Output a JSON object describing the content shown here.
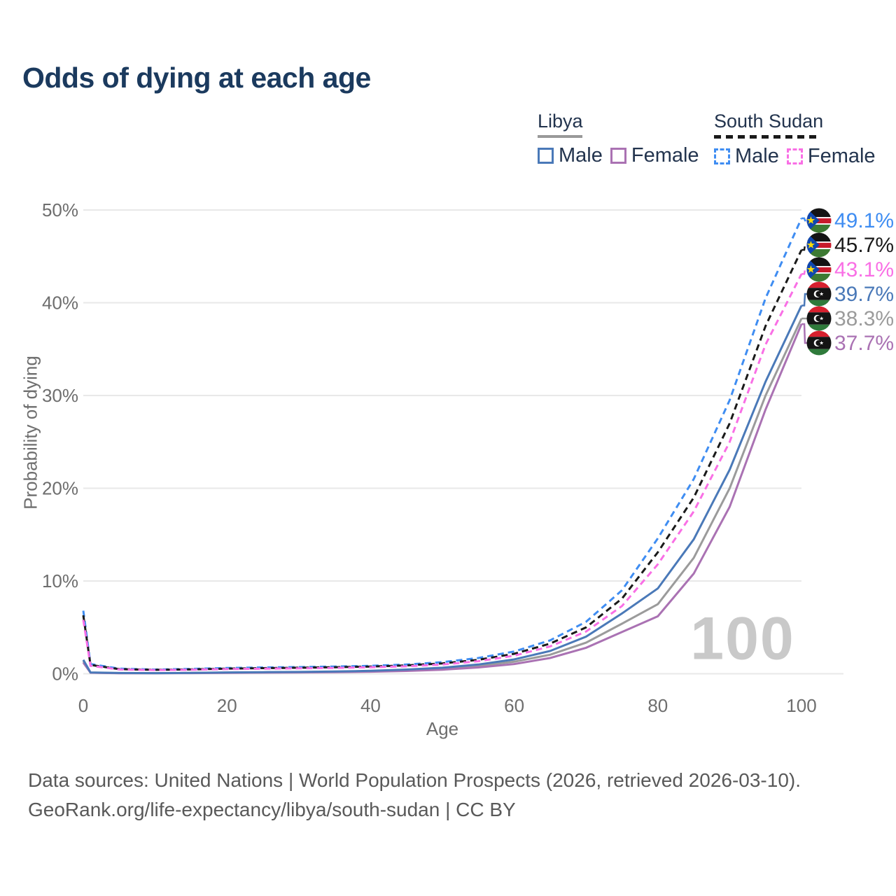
{
  "title": "Odds of dying at each age",
  "legend": {
    "groups": [
      {
        "id": "libya",
        "label": "Libya",
        "underline_style": "solid",
        "underline_color": "#999999",
        "items": [
          {
            "id": "libya_male",
            "label": "Male",
            "color": "#4a79b8",
            "dashed": false
          },
          {
            "id": "libya_female",
            "label": "Female",
            "color": "#aa72b3",
            "dashed": false
          }
        ]
      },
      {
        "id": "south_sudan",
        "label": "South Sudan",
        "underline_style": "dashed",
        "underline_color": "#1a1a1a",
        "items": [
          {
            "id": "ss_male",
            "label": "Male",
            "color": "#3f8df2",
            "dashed": true
          },
          {
            "id": "ss_female",
            "label": "Female",
            "color": "#f96fe5",
            "dashed": true
          }
        ]
      }
    ]
  },
  "chart_data": {
    "type": "line",
    "title": "Odds of dying at each age",
    "xlabel": "Age",
    "ylabel": "Probability of dying",
    "xlim": [
      0,
      100
    ],
    "ylim_percent": [
      0,
      50
    ],
    "xticks": [
      0,
      20,
      40,
      60,
      80,
      100
    ],
    "yticks_percent": [
      0,
      10,
      20,
      30,
      40,
      50
    ],
    "grid": "horizontal",
    "legend_position": "top-right",
    "watermark": "100",
    "x_ages": [
      0,
      1,
      5,
      10,
      15,
      20,
      25,
      30,
      35,
      40,
      45,
      50,
      55,
      60,
      65,
      70,
      75,
      80,
      85,
      90,
      95,
      100
    ],
    "series": [
      {
        "name": "South Sudan Male",
        "country": "south_sudan",
        "sex": "male",
        "color": "#3f8df2",
        "style": "dashed",
        "end_label": "49.1%",
        "values": [
          6.8,
          1.05,
          0.55,
          0.45,
          0.52,
          0.62,
          0.68,
          0.72,
          0.78,
          0.85,
          1.0,
          1.25,
          1.7,
          2.4,
          3.6,
          5.6,
          9.0,
          14.6,
          21.0,
          29.5,
          40.5,
          49.1
        ]
      },
      {
        "name": "South Sudan Both sexes",
        "country": "south_sudan",
        "sex": "both",
        "color": "#1a1a1a",
        "style": "dashed",
        "end_label": "45.7%",
        "values": [
          6.3,
          0.95,
          0.5,
          0.42,
          0.47,
          0.55,
          0.6,
          0.65,
          0.7,
          0.78,
          0.9,
          1.12,
          1.5,
          2.15,
          3.25,
          5.0,
          8.1,
          13.1,
          19.0,
          27.0,
          37.5,
          45.7
        ]
      },
      {
        "name": "South Sudan Female",
        "country": "south_sudan",
        "sex": "female",
        "color": "#f96fe5",
        "style": "dashed",
        "end_label": "43.1%",
        "values": [
          5.8,
          0.85,
          0.46,
          0.4,
          0.43,
          0.5,
          0.54,
          0.58,
          0.63,
          0.7,
          0.8,
          1.0,
          1.35,
          1.95,
          2.95,
          4.55,
          7.3,
          11.8,
          17.5,
          25.0,
          35.5,
          43.1
        ]
      },
      {
        "name": "Libya Male",
        "country": "libya",
        "sex": "male",
        "color": "#4a79b8",
        "style": "solid",
        "end_label": "39.7%",
        "values": [
          1.5,
          0.14,
          0.08,
          0.07,
          0.1,
          0.14,
          0.17,
          0.2,
          0.24,
          0.32,
          0.45,
          0.65,
          1.0,
          1.55,
          2.45,
          4.0,
          6.5,
          9.2,
          14.5,
          22.0,
          31.5,
          39.7
        ]
      },
      {
        "name": "Libya Both sexes",
        "country": "libya",
        "sex": "both",
        "color": "#9b9b9b",
        "style": "solid",
        "end_label": "38.3%",
        "values": [
          1.35,
          0.12,
          0.07,
          0.06,
          0.09,
          0.12,
          0.14,
          0.17,
          0.2,
          0.27,
          0.38,
          0.55,
          0.85,
          1.3,
          2.05,
          3.35,
          5.4,
          7.5,
          12.5,
          20.0,
          30.0,
          38.3
        ]
      },
      {
        "name": "Libya Female",
        "country": "libya",
        "sex": "female",
        "color": "#aa72b3",
        "style": "solid",
        "end_label": "37.7%",
        "values": [
          1.2,
          0.11,
          0.06,
          0.05,
          0.07,
          0.1,
          0.12,
          0.14,
          0.17,
          0.22,
          0.3,
          0.44,
          0.68,
          1.05,
          1.7,
          2.8,
          4.5,
          6.2,
          10.8,
          18.0,
          28.5,
          37.7
        ]
      }
    ]
  },
  "flags": {
    "south_sudan": {
      "black": "#141414",
      "red": "#c81a2b",
      "green": "#3d7a33",
      "blue": "#0f47af",
      "yellow": "#fcdd09",
      "white": "#ffffff"
    },
    "libya": {
      "red": "#d6202e",
      "black": "#141414",
      "green": "#2f7a3b",
      "white": "#ffffff"
    }
  },
  "colors": {
    "title": "#1b3a5e",
    "legend_text": "#23344e",
    "tick_text": "#6e6e6e",
    "gridline": "#e8e8e8",
    "watermark": "#c9c9c9",
    "footer_text": "#595959"
  },
  "footer": {
    "line1": "Data sources: United Nations | World Population Prospects (2026, retrieved 2026-03-10).",
    "line2": "GeoRank.org/life-expectancy/libya/south-sudan | CC BY"
  }
}
